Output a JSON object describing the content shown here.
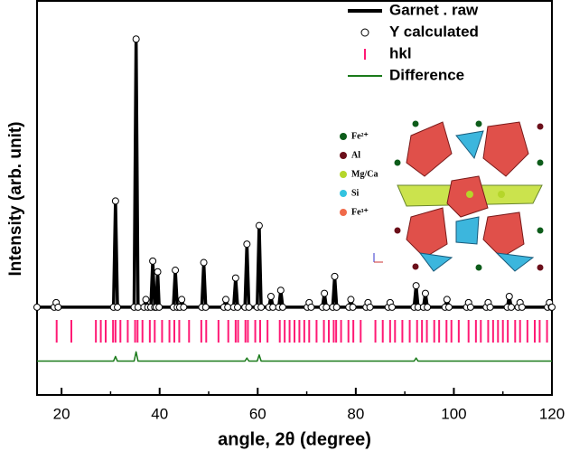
{
  "chart_data": {
    "type": "xrd",
    "xlabel": "angle, 2θ (degree)",
    "ylabel": "Intensity (arb. unit)",
    "xlim": [
      15,
      120
    ],
    "ylim": [
      -28,
      100
    ],
    "xticks": [
      20,
      40,
      60,
      80,
      100,
      120
    ],
    "xminorticks": [
      30,
      50,
      70,
      90,
      110
    ],
    "legend": "upper right",
    "x": [
      15,
      18.5,
      18.9,
      19.3,
      30.6,
      31.0,
      31.4,
      34.8,
      35.2,
      35.6,
      36.8,
      37.2,
      37.6,
      38.2,
      38.6,
      39.0,
      39.3,
      39.6,
      39.9,
      42.8,
      43.2,
      43.6,
      44.1,
      44.5,
      44.9,
      48.6,
      49.0,
      49.4,
      53.1,
      53.5,
      53.9,
      55.1,
      55.5,
      55.9,
      57.4,
      57.8,
      58.2,
      59.9,
      60.3,
      60.7,
      62.3,
      62.7,
      63.1,
      64.3,
      64.7,
      65.1,
      70.1,
      70.5,
      70.9,
      73.2,
      73.6,
      74.0,
      75.3,
      75.7,
      76.1,
      78.6,
      79.0,
      79.4,
      82.1,
      82.5,
      82.9,
      86.6,
      87.0,
      87.4,
      91.9,
      92.3,
      92.7,
      93.8,
      94.2,
      94.6,
      98.2,
      98.6,
      99.0,
      102.6,
      103.0,
      103.4,
      106.6,
      107.0,
      107.4,
      110.9,
      111.3,
      111.7,
      113.1,
      113.5,
      113.9,
      119.1,
      119.5,
      119.9,
      120
    ],
    "series": [
      {
        "name": "Garnet . raw",
        "style": "line",
        "color": "#000000",
        "values": [
          0.5,
          0.5,
          2,
          0.5,
          0.5,
          35,
          0.5,
          0.5,
          87.6,
          0.5,
          0.5,
          3,
          0.5,
          0.5,
          15.5,
          0.5,
          0.5,
          12,
          0.5,
          0.5,
          12.5,
          0.5,
          0.5,
          3,
          0.5,
          0.5,
          15,
          0.5,
          0.5,
          3,
          0.5,
          0.5,
          10,
          0.5,
          0.5,
          21,
          0.5,
          0.5,
          27,
          0.5,
          0.5,
          4,
          0.5,
          0.5,
          6,
          0.5,
          0.5,
          2,
          0.5,
          0.5,
          5,
          0.5,
          0.5,
          10.5,
          0.5,
          0.5,
          3,
          0.5,
          0.5,
          2,
          0.5,
          0.5,
          2,
          0.5,
          0.5,
          7.5,
          0.5,
          0.5,
          5,
          0.5,
          0.5,
          3,
          0.5,
          0.5,
          2,
          0.5,
          0.5,
          2,
          0.5,
          0.5,
          4,
          0.5,
          0.5,
          2,
          0.5,
          0.5,
          2,
          0.5,
          0.5
        ]
      },
      {
        "name": "Y calculated",
        "style": "circles",
        "color": "#000000",
        "values": [
          0.5,
          0.5,
          2,
          0.5,
          0.5,
          35,
          0.5,
          0.5,
          87.6,
          0.5,
          0.5,
          3,
          0.5,
          0.5,
          15.5,
          0.5,
          0.5,
          12,
          0.5,
          0.5,
          12.5,
          0.5,
          0.5,
          3,
          0.5,
          0.5,
          15,
          0.5,
          0.5,
          3,
          0.5,
          0.5,
          10,
          0.5,
          0.5,
          21,
          0.5,
          0.5,
          27,
          0.5,
          0.5,
          4,
          0.5,
          0.5,
          6,
          0.5,
          0.5,
          2,
          0.5,
          0.5,
          5,
          0.5,
          0.5,
          10.5,
          0.5,
          0.5,
          3,
          0.5,
          0.5,
          2,
          0.5,
          0.5,
          2,
          0.5,
          0.5,
          7.5,
          0.5,
          0.5,
          5,
          0.5,
          0.5,
          3,
          0.5,
          0.5,
          2,
          0.5,
          0.5,
          2,
          0.5,
          0.5,
          4,
          0.5,
          0.5,
          2,
          0.5,
          0.5,
          2,
          0.5,
          0.5
        ]
      },
      {
        "name": "hkl",
        "style": "hkl",
        "color": "#ff1a75",
        "positions": [
          19,
          22,
          27,
          28,
          29,
          30.5,
          31,
          32,
          33.5,
          35,
          35.5,
          36.5,
          38,
          39,
          40.5,
          42,
          43,
          44,
          46,
          48.5,
          49.5,
          52,
          54,
          55.5,
          56,
          57.5,
          58,
          59.5,
          60.5,
          62,
          64.5,
          65.5,
          66.5,
          67.5,
          68.5,
          69.5,
          70.5,
          72,
          73.5,
          74.5,
          75.5,
          76,
          77,
          78.5,
          79.5,
          81,
          84,
          85.5,
          87,
          88,
          89.5,
          91,
          92.5,
          93.5,
          94.5,
          96,
          97,
          98.5,
          99.5,
          101,
          103,
          104.5,
          105.5,
          107,
          108,
          109,
          110,
          111,
          112.5,
          113.5,
          115,
          116.5,
          117.5,
          119
        ]
      },
      {
        "name": "Difference",
        "style": "line",
        "color": "#1a7a1a",
        "values": [
          -17,
          -17,
          -17,
          -17,
          -17,
          -15.5,
          -17,
          -17,
          -14,
          -17,
          -17,
          -17,
          -17,
          -17,
          -17,
          -17,
          -17,
          -17,
          -17,
          -17,
          -17,
          -17,
          -17,
          -17,
          -17,
          -17,
          -17,
          -17,
          -17,
          -17,
          -17,
          -17,
          -17,
          -17,
          -17,
          -16,
          -17,
          -17,
          -15,
          -17,
          -17,
          -17,
          -17,
          -17,
          -17,
          -17,
          -17,
          -17,
          -17,
          -17,
          -17,
          -17,
          -17,
          -17,
          -17,
          -17,
          -17,
          -17,
          -17,
          -17,
          -17,
          -17,
          -17,
          -17,
          -17,
          -16,
          -17,
          -17,
          -17,
          -17,
          -17,
          -17,
          -17,
          -17,
          -17,
          -17,
          -17,
          -17,
          -17,
          -17,
          -17,
          -17,
          -17,
          -17,
          -17,
          -17,
          -17,
          -17,
          -17
        ]
      }
    ]
  },
  "inset": {
    "labels": [
      {
        "text": "Fe²⁺",
        "color": "#0d5c1a"
      },
      {
        "text": "Al",
        "color": "#6b0f1a"
      },
      {
        "text": "Mg/Ca",
        "color": "#b5d62a"
      },
      {
        "text": "Si",
        "color": "#33c3e0"
      },
      {
        "text": "Fe³⁺",
        "color": "#f06a4a"
      }
    ]
  }
}
